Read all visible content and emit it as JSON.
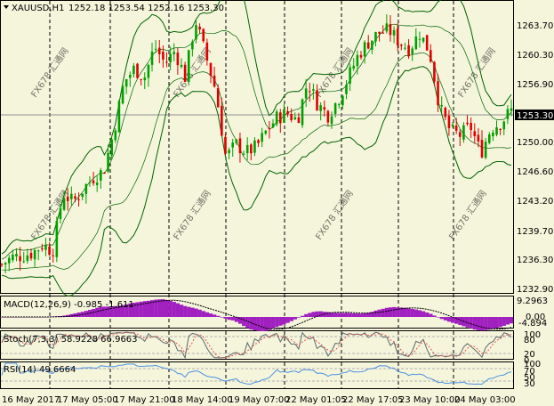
{
  "header": {
    "symbol": "XAUUSD,H1",
    "ohlc": "1252.18 1253.54 1252.16 1253.30"
  },
  "price_axis": {
    "ticks": [
      "1263.70",
      "1260.30",
      "1256.90",
      "1253.30",
      "1250.00",
      "1246.60",
      "1243.20",
      "1239.70",
      "1236.30",
      "1232.90"
    ],
    "current": "1253.30"
  },
  "time_axis": [
    "16 May 2017",
    "17 May 05:00",
    "17 May 21:00",
    "18 May 14:00",
    "19 May 07:00",
    "22 May 01:05",
    "22 May 17:05",
    "23 May 10:00",
    "24 May 03:00"
  ],
  "indicators": {
    "macd": {
      "label": "MACD(12,26,9) -0.985 -1.611",
      "ticks": [
        "9.2963",
        "0.00",
        "-4.894"
      ]
    },
    "stoch": {
      "label": "Stoch(7,3,3) 58.9228 66.9663",
      "ticks": [
        "100",
        "80",
        "20",
        "0"
      ]
    },
    "rsi": {
      "label": "RSI(14) 49.6664",
      "ticks": [
        "100",
        "70",
        "50",
        "30"
      ]
    }
  },
  "watermark": "FX678 汇通网",
  "colors": {
    "background": "#F5F5DC",
    "bull": "#00A000",
    "bear": "#E00000",
    "band": "#006400",
    "macd_hist": "#A020C0",
    "stoch_signal": "#E05050",
    "rsi_line": "#4A90E2"
  },
  "chart_data": {
    "type": "candlestick",
    "symbol": "XAUUSD",
    "timeframe": "H1",
    "ylim": [
      1232.9,
      1265.5
    ],
    "close_path": [
      [
        0,
        1236.0
      ],
      [
        2,
        1236.8
      ],
      [
        4,
        1237.0
      ],
      [
        6,
        1237.3
      ],
      [
        8,
        1238.2
      ],
      [
        10,
        1237.5
      ],
      [
        12,
        1244.0
      ],
      [
        14,
        1243.0
      ],
      [
        16,
        1244.5
      ],
      [
        18,
        1245.8
      ],
      [
        20,
        1246.5
      ],
      [
        22,
        1251.0
      ],
      [
        24,
        1256.5
      ],
      [
        26,
        1258.0
      ],
      [
        28,
        1257.0
      ],
      [
        30,
        1260.5
      ],
      [
        32,
        1258.6
      ],
      [
        34,
        1260.0
      ],
      [
        36,
        1257.0
      ],
      [
        38,
        1263.5
      ],
      [
        40,
        1259.5
      ],
      [
        42,
        1255.5
      ],
      [
        44,
        1248.0
      ],
      [
        46,
        1249.5
      ],
      [
        48,
        1248.6
      ],
      [
        50,
        1249.2
      ],
      [
        52,
        1251.0
      ],
      [
        54,
        1252.5
      ],
      [
        56,
        1253.0
      ],
      [
        58,
        1252.2
      ],
      [
        60,
        1256.5
      ],
      [
        62,
        1254.0
      ],
      [
        64,
        1252.8
      ],
      [
        66,
        1254.5
      ],
      [
        68,
        1257.0
      ],
      [
        70,
        1259.6
      ],
      [
        72,
        1261.0
      ],
      [
        74,
        1262.0
      ],
      [
        76,
        1262.3
      ],
      [
        78,
        1261.0
      ],
      [
        80,
        1260.2
      ],
      [
        82,
        1262.0
      ],
      [
        84,
        1259.8
      ],
      [
        86,
        1253.5
      ],
      [
        88,
        1251.0
      ],
      [
        90,
        1250.5
      ],
      [
        92,
        1251.5
      ],
      [
        94,
        1248.5
      ],
      [
        96,
        1251.3
      ],
      [
        98,
        1252.0
      ],
      [
        100,
        1253.3
      ]
    ]
  }
}
